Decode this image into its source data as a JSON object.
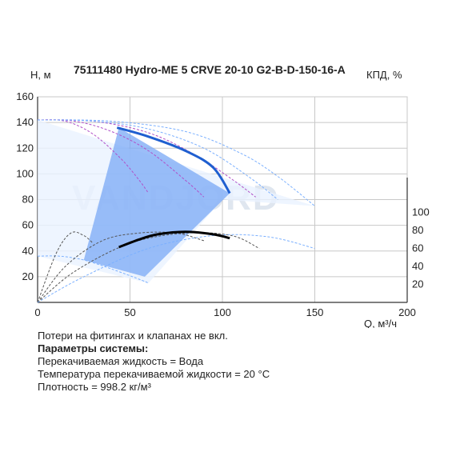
{
  "chart_data": {
    "type": "line",
    "title": "75111480 Hydro-ME 5 CRVE 20-10 G2-B-D-150-16-A",
    "ylabel": "H, м",
    "ylabel_right": "КПД, %",
    "xlabel": "Q, м³/ч",
    "xlim": [
      0,
      200
    ],
    "ylim": [
      0,
      160
    ],
    "y2lim": [
      0,
      130
    ],
    "xticks": [
      0,
      50,
      100,
      150,
      200
    ],
    "yticks": [
      20,
      40,
      60,
      80,
      100,
      120,
      140,
      160
    ],
    "y2ticks": [
      20,
      40,
      60,
      80,
      100
    ],
    "grid": true,
    "watermark": "VANDJORD",
    "colors": {
      "grid": "#c8c8c8",
      "head_blue": "#1f5fd0",
      "light_blue": "#7bb0ff",
      "region_fill": "#7aa8f5",
      "black": "#000000",
      "gray": "#555555",
      "purple": "#b050c8"
    },
    "head_curves": [
      {
        "color": "purple",
        "points": [
          [
            0,
            142
          ],
          [
            15,
            141
          ],
          [
            30,
            131
          ],
          [
            45,
            112
          ],
          [
            55,
            95
          ],
          [
            60,
            85
          ]
        ]
      },
      {
        "color": "purple",
        "points": [
          [
            0,
            142
          ],
          [
            20,
            141
          ],
          [
            40,
            133
          ],
          [
            60,
            118
          ],
          [
            80,
            95
          ],
          [
            90,
            82
          ]
        ]
      },
      {
        "color": "purple",
        "points": [
          [
            0,
            142
          ],
          [
            30,
            141
          ],
          [
            60,
            132
          ],
          [
            85,
            115
          ],
          [
            105,
            96
          ],
          [
            118,
            82
          ]
        ]
      },
      {
        "color": "light_blue",
        "points": [
          [
            0,
            142
          ],
          [
            40,
            141
          ],
          [
            80,
            133
          ],
          [
            110,
            116
          ],
          [
            130,
            98
          ],
          [
            150,
            75
          ]
        ]
      },
      {
        "color": "light_blue",
        "points": [
          [
            0,
            142
          ],
          [
            30,
            141
          ],
          [
            60,
            135
          ],
          [
            90,
            120
          ],
          [
            115,
            97
          ],
          [
            130,
            80
          ]
        ]
      },
      {
        "color": "light_blue",
        "points": [
          [
            0,
            36
          ],
          [
            12,
            36
          ],
          [
            25,
            33
          ],
          [
            40,
            26
          ],
          [
            55,
            18
          ],
          [
            60,
            15
          ]
        ]
      }
    ],
    "efficiency_curves": [
      {
        "color": "gray",
        "points": [
          [
            0,
            0
          ],
          [
            10,
            38
          ],
          [
            18,
            54
          ],
          [
            25,
            52
          ],
          [
            30,
            46
          ]
        ]
      },
      {
        "color": "gray",
        "points": [
          [
            0,
            0
          ],
          [
            15,
            28
          ],
          [
            35,
            48
          ],
          [
            55,
            54
          ],
          [
            75,
            54
          ],
          [
            90,
            48
          ]
        ]
      },
      {
        "color": "gray",
        "points": [
          [
            0,
            0
          ],
          [
            20,
            24
          ],
          [
            50,
            46
          ],
          [
            80,
            54
          ],
          [
            105,
            52
          ],
          [
            120,
            42
          ]
        ]
      },
      {
        "color": "light_blue",
        "points": [
          [
            0,
            0
          ],
          [
            25,
            20
          ],
          [
            60,
            42
          ],
          [
            95,
            52
          ],
          [
            125,
            51
          ],
          [
            150,
            42
          ]
        ]
      }
    ],
    "selected_head": [
      [
        43,
        136
      ],
      [
        60,
        129
      ],
      [
        80,
        118
      ],
      [
        95,
        105
      ],
      [
        104,
        85
      ]
    ],
    "selected_efficiency": [
      [
        44,
        43
      ],
      [
        55,
        49
      ],
      [
        65,
        53
      ],
      [
        80,
        55
      ],
      [
        95,
        53
      ],
      [
        104,
        50
      ]
    ],
    "operating_region": [
      [
        25,
        33
      ],
      [
        44,
        136
      ],
      [
        104,
        85
      ],
      [
        58,
        20
      ]
    ]
  },
  "notes": {
    "line1": "Потери на фитингах и клапанах не вкл.",
    "line2": "Параметры системы:",
    "line3": "Перекачиваемая жидкость = Вода",
    "line4": "Температура перекачиваемой жидкости = 20 °C",
    "line5": "Плотность = 998.2 кг/м³"
  }
}
